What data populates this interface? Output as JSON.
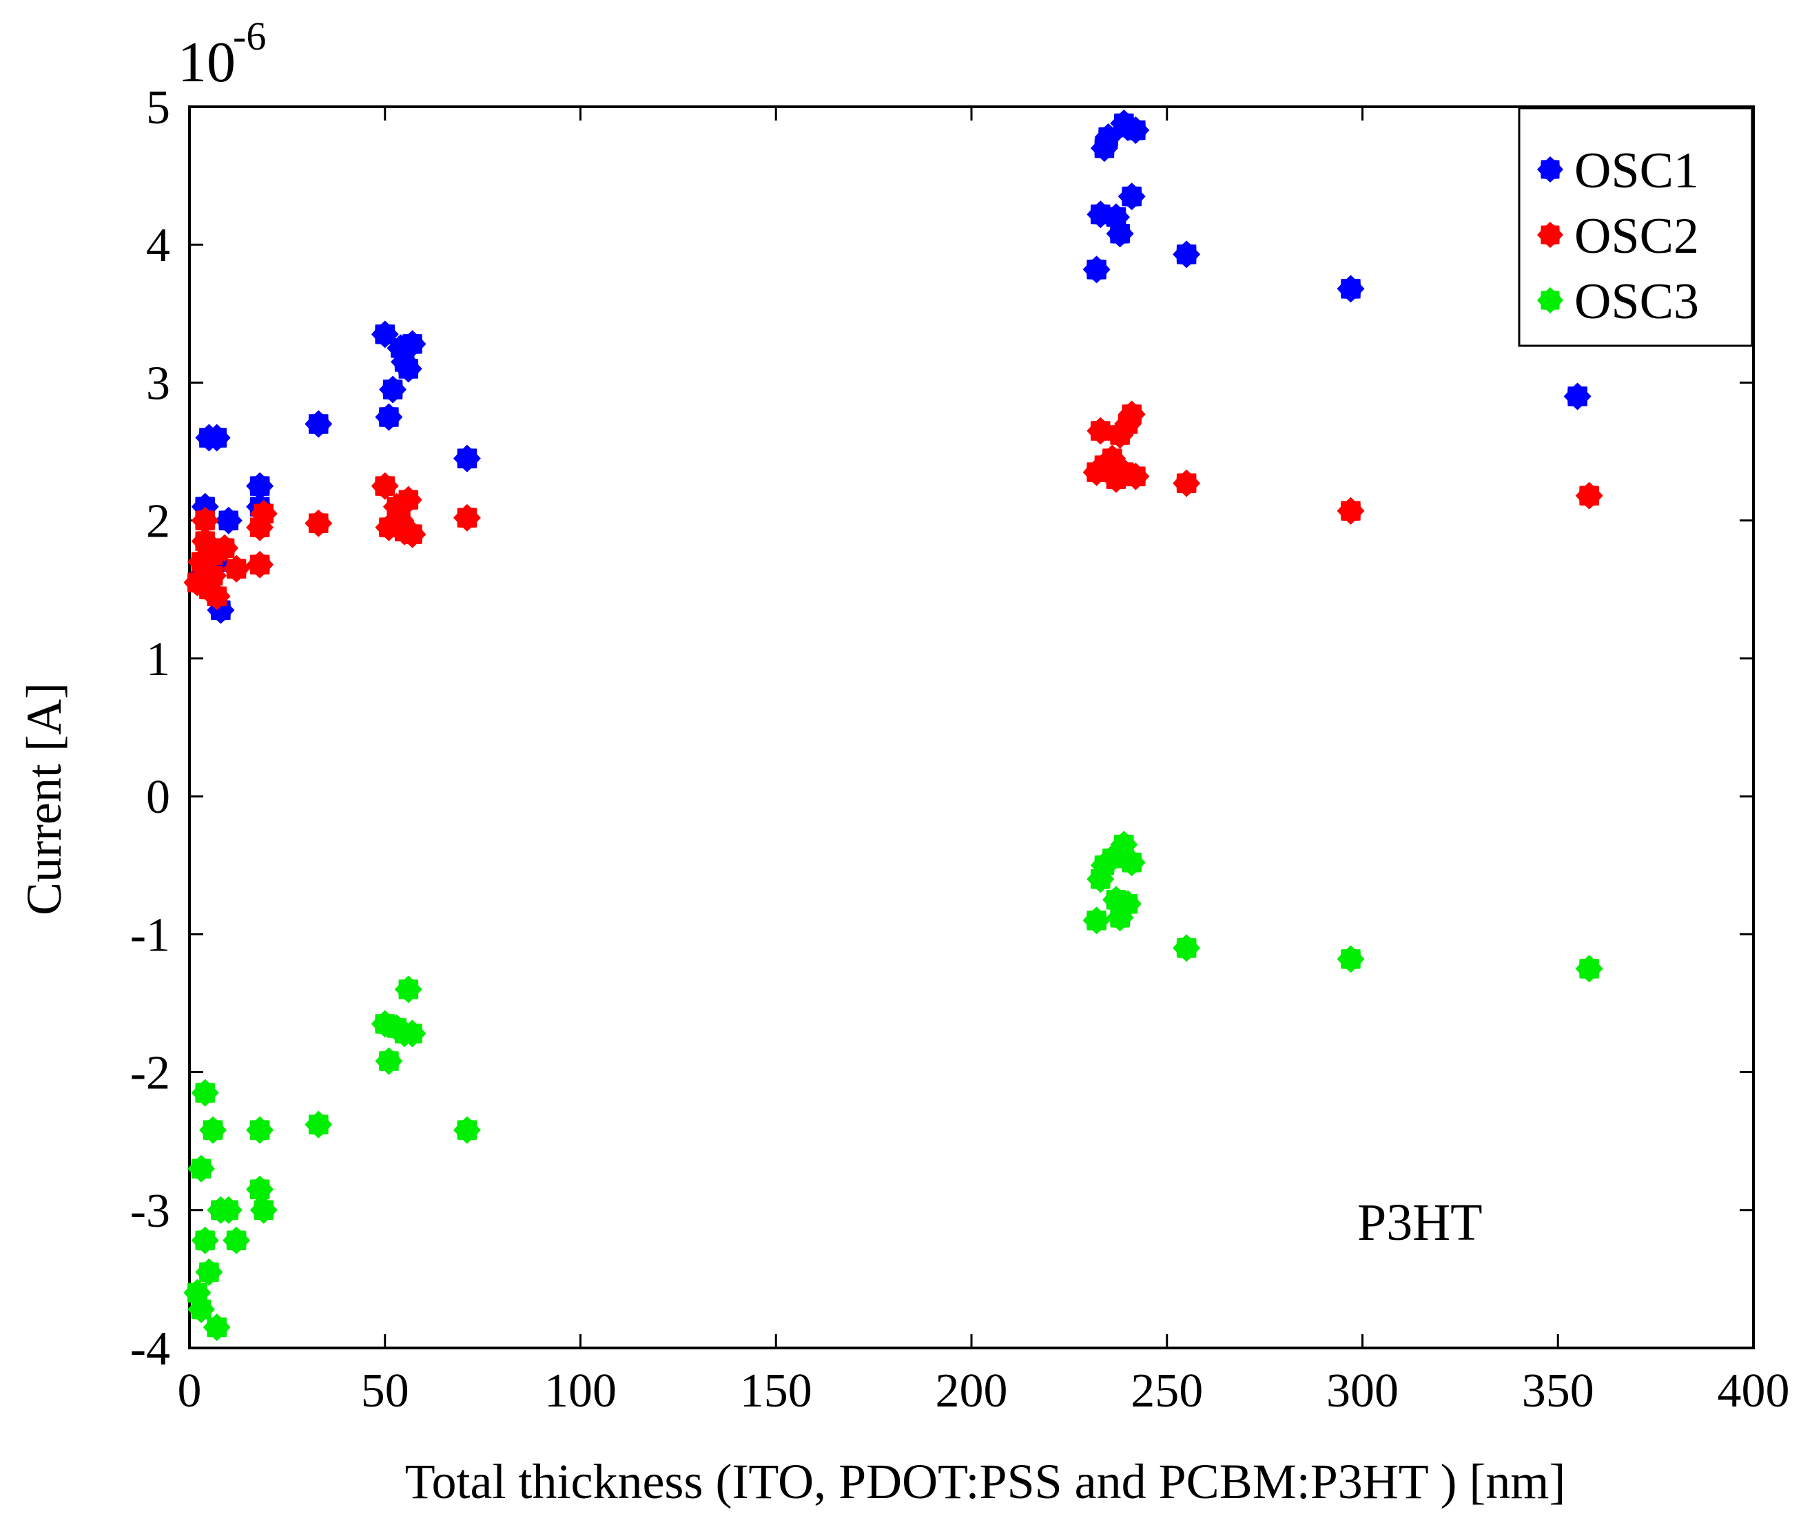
{
  "chart_data": {
    "type": "scatter",
    "title": "",
    "xlabel": "Total thickness (ITO, PDOT:PSS and PCBM:P3HT ) [nm]",
    "ylabel": "Current [A]",
    "exponent_label": "10",
    "exponent_power": "-6",
    "xlim": [
      0,
      400
    ],
    "ylim": [
      -4,
      5
    ],
    "xticks": [
      "0",
      "50",
      "100",
      "150",
      "200",
      "250",
      "300",
      "350",
      "400"
    ],
    "yticks": [
      "-4",
      "-3",
      "-2",
      "-1",
      "0",
      "1",
      "2",
      "3",
      "4",
      "5"
    ],
    "grid": false,
    "legend_position": "top-right",
    "annotation": "P3HT",
    "series": [
      {
        "name": "OSC1",
        "color": "#0000ff",
        "points": [
          [
            3,
            1.6
          ],
          [
            4,
            2.1
          ],
          [
            5,
            2.6
          ],
          [
            7,
            2.6
          ],
          [
            7,
            1.7
          ],
          [
            8,
            1.35
          ],
          [
            10,
            2.0
          ],
          [
            18,
            2.25
          ],
          [
            18,
            2.1
          ],
          [
            33,
            2.7
          ],
          [
            50,
            3.35
          ],
          [
            52,
            2.95
          ],
          [
            51,
            2.75
          ],
          [
            54,
            3.25
          ],
          [
            55,
            3.15
          ],
          [
            56,
            3.1
          ],
          [
            57,
            3.28
          ],
          [
            71,
            2.45
          ],
          [
            232,
            3.82
          ],
          [
            233,
            4.22
          ],
          [
            234,
            4.7
          ],
          [
            235,
            4.78
          ],
          [
            237,
            4.2
          ],
          [
            238,
            4.08
          ],
          [
            239,
            4.88
          ],
          [
            240,
            4.85
          ],
          [
            241,
            4.35
          ],
          [
            242,
            4.83
          ],
          [
            255,
            3.93
          ],
          [
            297,
            3.68
          ],
          [
            355,
            2.9
          ]
        ]
      },
      {
        "name": "OSC2",
        "color": "#ff0000",
        "points": [
          [
            2,
            1.55
          ],
          [
            3,
            1.7
          ],
          [
            4,
            1.85
          ],
          [
            4,
            2.0
          ],
          [
            5,
            1.5
          ],
          [
            6,
            1.6
          ],
          [
            6,
            1.75
          ],
          [
            7,
            1.45
          ],
          [
            9,
            1.8
          ],
          [
            12,
            1.65
          ],
          [
            18,
            1.68
          ],
          [
            18,
            1.95
          ],
          [
            19,
            2.05
          ],
          [
            33,
            1.98
          ],
          [
            50,
            2.25
          ],
          [
            51,
            1.95
          ],
          [
            53,
            2.1
          ],
          [
            54,
            2.0
          ],
          [
            55,
            1.92
          ],
          [
            56,
            2.15
          ],
          [
            57,
            1.9
          ],
          [
            71,
            2.02
          ],
          [
            232,
            2.35
          ],
          [
            233,
            2.65
          ],
          [
            234,
            2.4
          ],
          [
            236,
            2.45
          ],
          [
            237,
            2.3
          ],
          [
            238,
            2.62
          ],
          [
            239,
            2.35
          ],
          [
            240,
            2.7
          ],
          [
            241,
            2.77
          ],
          [
            242,
            2.32
          ],
          [
            255,
            2.27
          ],
          [
            297,
            2.07
          ],
          [
            358,
            2.18
          ]
        ]
      },
      {
        "name": "OSC3",
        "color": "#00ee00",
        "points": [
          [
            2,
            -3.6
          ],
          [
            3,
            -3.72
          ],
          [
            3,
            -2.7
          ],
          [
            4,
            -2.15
          ],
          [
            4,
            -3.22
          ],
          [
            5,
            -3.45
          ],
          [
            6,
            -2.42
          ],
          [
            7,
            -3.85
          ],
          [
            8,
            -3.0
          ],
          [
            10,
            -3.0
          ],
          [
            12,
            -3.22
          ],
          [
            18,
            -2.42
          ],
          [
            18,
            -2.85
          ],
          [
            19,
            -3.0
          ],
          [
            33,
            -2.38
          ],
          [
            50,
            -1.65
          ],
          [
            51,
            -1.92
          ],
          [
            53,
            -1.68
          ],
          [
            55,
            -1.72
          ],
          [
            56,
            -1.4
          ],
          [
            57,
            -1.72
          ],
          [
            71,
            -2.42
          ],
          [
            232,
            -0.9
          ],
          [
            233,
            -0.6
          ],
          [
            234,
            -0.5
          ],
          [
            236,
            -0.45
          ],
          [
            237,
            -0.75
          ],
          [
            238,
            -0.88
          ],
          [
            239,
            -0.35
          ],
          [
            240,
            -0.78
          ],
          [
            241,
            -0.48
          ],
          [
            255,
            -1.1
          ],
          [
            297,
            -1.18
          ],
          [
            358,
            -1.25
          ]
        ]
      }
    ]
  }
}
